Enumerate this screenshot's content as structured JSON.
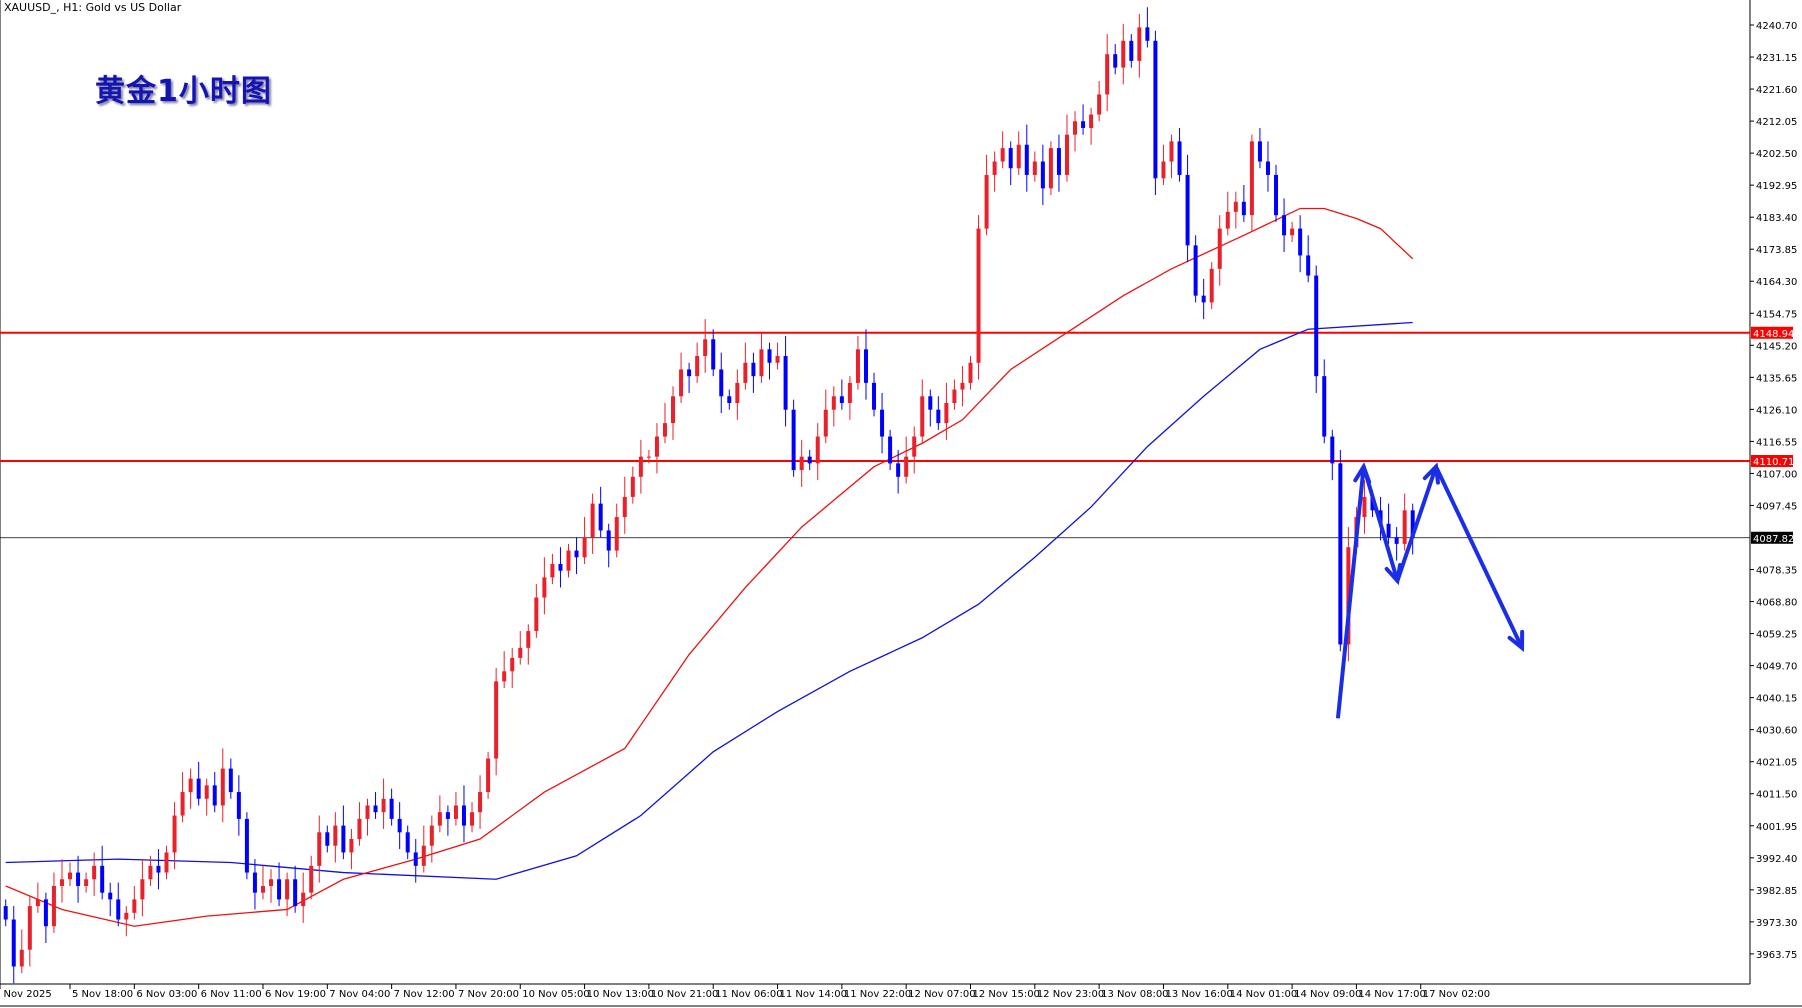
{
  "header": {
    "symbol_label": "XAUUSD_, H1:  Gold vs US Dollar"
  },
  "annotation": {
    "title": "黄金1小时图"
  },
  "colors": {
    "bull": "#e8212b",
    "bear": "#0000ff",
    "ma_fast": "#ee1111",
    "ma_slow": "#1010e0",
    "level": "#ff0000",
    "current": "#000000",
    "arrow": "#1a2ee8"
  },
  "chart_data": {
    "type": "candlestick",
    "ylim": [
      3955,
      4246
    ],
    "y_ticks": [
      "4240.70",
      "4231.15",
      "4221.60",
      "4212.05",
      "4202.50",
      "4192.95",
      "4183.40",
      "4173.85",
      "4164.30",
      "4154.75",
      "4145.20",
      "4135.65",
      "4126.10",
      "4116.55",
      "4107.00",
      "4097.45",
      "4078.35",
      "4068.80",
      "4059.25",
      "4049.70",
      "4040.15",
      "4030.60",
      "4021.05",
      "4011.50",
      "4001.95",
      "3992.40",
      "3982.85",
      "3973.30",
      "3963.75"
    ],
    "x_ticks": [
      "5 Nov 2025",
      "5 Nov 18:00",
      "6 Nov 03:00",
      "6 Nov 11:00",
      "6 Nov 19:00",
      "7 Nov 04:00",
      "7 Nov 12:00",
      "7 Nov 20:00",
      "10 Nov 05:00",
      "10 Nov 13:00",
      "10 Nov 21:00",
      "11 Nov 06:00",
      "11 Nov 14:00",
      "11 Nov 22:00",
      "12 Nov 07:00",
      "12 Nov 15:00",
      "12 Nov 23:00",
      "13 Nov 08:00",
      "13 Nov 16:00",
      "14 Nov 01:00",
      "14 Nov 09:00",
      "14 Nov 17:00",
      "17 Nov 02:00"
    ],
    "close": [
      3974,
      3960,
      3965,
      3978,
      3980,
      3972,
      3984,
      3986,
      3988,
      3984,
      3986,
      3990,
      3982,
      3980,
      3974,
      3976,
      3980,
      3986,
      3990,
      3988,
      3994,
      4005,
      4012,
      4016,
      4010,
      4014,
      4008,
      4019,
      4012,
      4004,
      3988,
      3982,
      3984,
      3986,
      3980,
      3986,
      3978,
      3982,
      3990,
      4000,
      3996,
      4002,
      3994,
      3998,
      4004,
      4008,
      4006,
      4010,
      4004,
      4000,
      3994,
      3990,
      3996,
      4002,
      4006,
      4004,
      4008,
      4002,
      4006,
      4012,
      4022,
      4045,
      4048,
      4052,
      4055,
      4060,
      4070,
      4076,
      4080,
      4078,
      4084,
      4082,
      4088,
      4098,
      4090,
      4084,
      4094,
      4100,
      4106,
      4112,
      4112,
      4118,
      4122,
      4130,
      4138,
      4136,
      4142,
      4147,
      4138,
      4130,
      4128,
      4134,
      4140,
      4136,
      4144,
      4140,
      4142,
      4126,
      4108,
      4112,
      4110,
      4118,
      4126,
      4130,
      4128,
      4134,
      4144,
      4134,
      4126,
      4118,
      4110,
      4106,
      4112,
      4118,
      4130,
      4126,
      4122,
      4128,
      4132,
      4134,
      4140,
      4180,
      4196,
      4200,
      4204,
      4198,
      4205,
      4196,
      4200,
      4192,
      4204,
      4196,
      4208,
      4212,
      4210,
      4214,
      4220,
      4232,
      4228,
      4236,
      4230,
      4240,
      4236,
      4195,
      4200,
      4206,
      4196,
      4175,
      4160,
      4158,
      4168,
      4180,
      4185,
      4188,
      4184,
      4206,
      4200,
      4196,
      4184,
      4178,
      4180,
      4172,
      4166,
      4136,
      4118,
      4110,
      4056,
      4085,
      4094,
      4100,
      4096,
      4092,
      4088,
      4086,
      4096,
      4087.82
    ],
    "ma_fast": [
      [
        0,
        3984
      ],
      [
        7,
        3977
      ],
      [
        16,
        3972
      ],
      [
        25,
        3975
      ],
      [
        35,
        3977
      ],
      [
        42,
        3986
      ],
      [
        51,
        3992
      ],
      [
        59,
        3998
      ],
      [
        67,
        4012
      ],
      [
        77,
        4025
      ],
      [
        85,
        4053
      ],
      [
        92,
        4073
      ],
      [
        99,
        4091
      ],
      [
        108,
        4109
      ],
      [
        114,
        4116
      ],
      [
        119,
        4123
      ],
      [
        125,
        4138
      ],
      [
        132,
        4149
      ],
      [
        139,
        4160
      ],
      [
        145,
        4168
      ],
      [
        154,
        4178
      ],
      [
        161,
        4186
      ],
      [
        164,
        4186
      ],
      [
        168,
        4183
      ],
      [
        171,
        4180
      ],
      [
        175,
        4171
      ]
    ],
    "ma_slow": [
      [
        0,
        3991
      ],
      [
        14,
        3992
      ],
      [
        28,
        3991
      ],
      [
        42,
        3988
      ],
      [
        61,
        3986
      ],
      [
        71,
        3993
      ],
      [
        79,
        4005
      ],
      [
        88,
        4024
      ],
      [
        96,
        4036
      ],
      [
        105,
        4048
      ],
      [
        114,
        4058
      ],
      [
        121,
        4068
      ],
      [
        128,
        4082
      ],
      [
        135,
        4097
      ],
      [
        142,
        4115
      ],
      [
        149,
        4130
      ],
      [
        156,
        4144
      ],
      [
        162,
        4150
      ],
      [
        175,
        4152
      ]
    ],
    "levels": [
      {
        "price": 4148.94,
        "label": "4148.94"
      },
      {
        "price": 4110.71,
        "label": "4110.71"
      }
    ],
    "current_price": {
      "price": 4087.82,
      "label": "4087.82"
    },
    "drawn_arrow": [
      [
        165.7,
        4034
      ],
      [
        168.9,
        4109
      ],
      [
        173.1,
        4075
      ],
      [
        177.9,
        4109
      ],
      [
        188.6,
        4055
      ]
    ]
  }
}
